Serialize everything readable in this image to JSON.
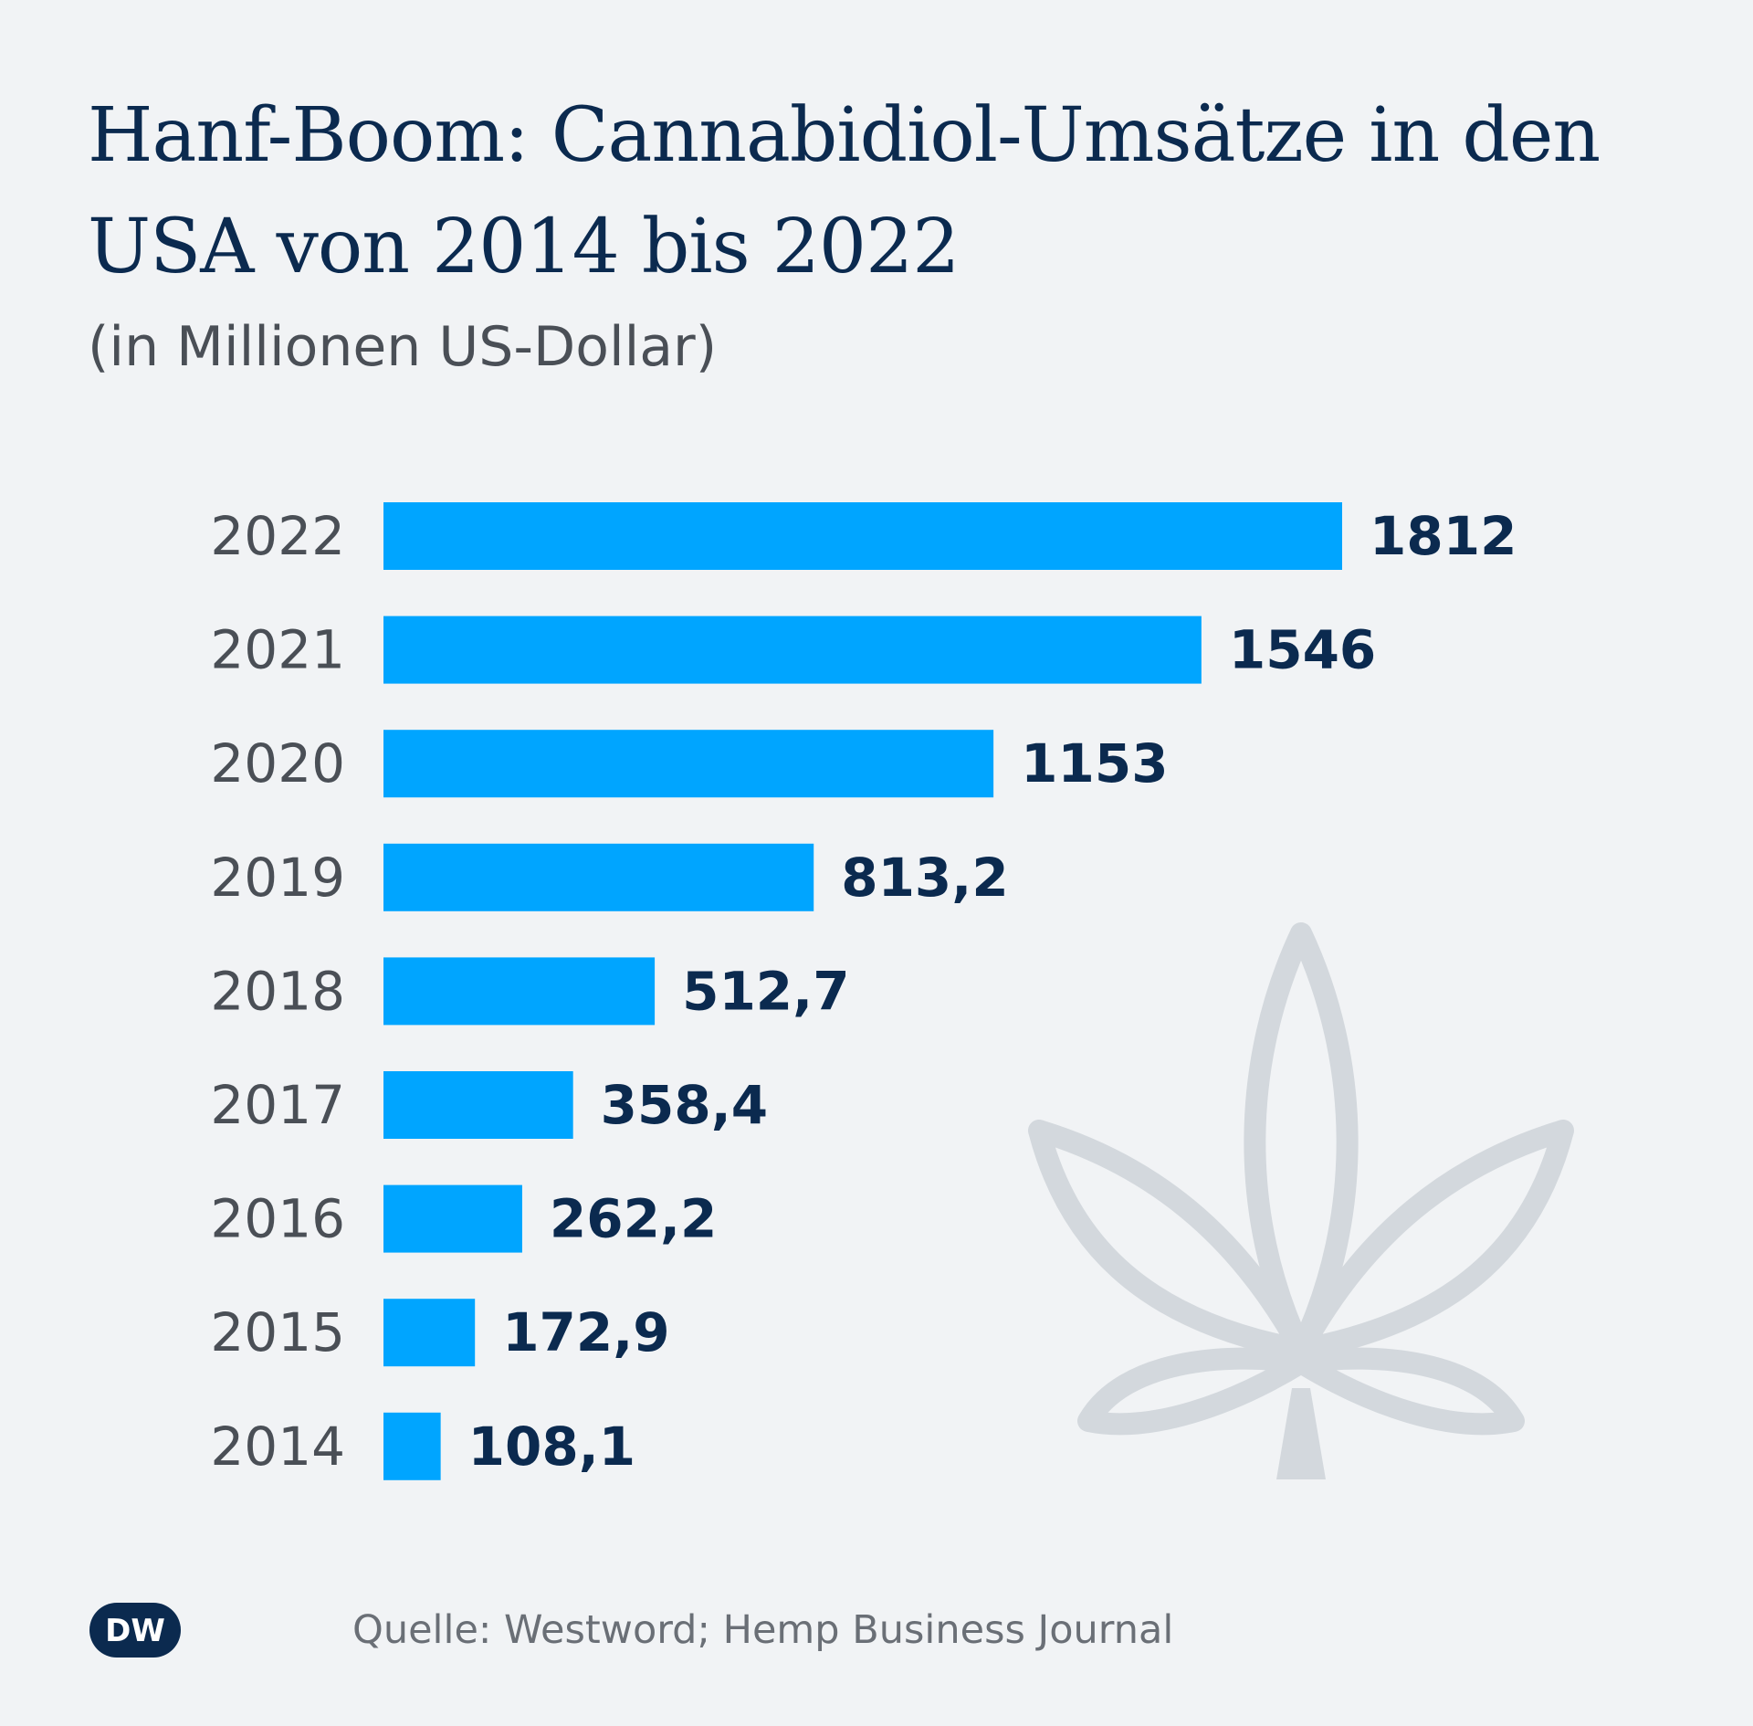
{
  "header": {
    "title": "Hanf-Boom: Cannabidiol-Umsätze in den USA von 2014 bis 2022",
    "subtitle": "(in Millionen US-Dollar)"
  },
  "footer": {
    "logo_text": "DW",
    "source": "Quelle: Westword; Hemp Business Journal"
  },
  "decoration": {
    "icon": "cannabis-leaf-icon"
  },
  "colors": {
    "bar": "#00a5ff",
    "title": "#0b2a4f",
    "value_label": "#0b2a4f",
    "category_label": "#4a4f56",
    "background": "#f1f3f5",
    "leaf": "#d3d8dd"
  },
  "chart_data": {
    "type": "bar",
    "orientation": "horizontal",
    "title": "Hanf-Boom: Cannabidiol-Umsätze in den USA von 2014 bis 2022",
    "subtitle": "(in Millionen US-Dollar)",
    "xlabel": "",
    "ylabel": "",
    "grid": false,
    "legend": "none",
    "categories": [
      "2022",
      "2021",
      "2020",
      "2019",
      "2018",
      "2017",
      "2016",
      "2015",
      "2014"
    ],
    "values": [
      1812,
      1546,
      1153,
      813.2,
      512.7,
      358.4,
      262.2,
      172.9,
      108.1
    ],
    "value_labels": [
      "1812",
      "1546",
      "1153",
      "813,2",
      "512,7",
      "358,4",
      "262,2",
      "172,9",
      "108,1"
    ],
    "xlim": [
      0,
      1812
    ]
  }
}
